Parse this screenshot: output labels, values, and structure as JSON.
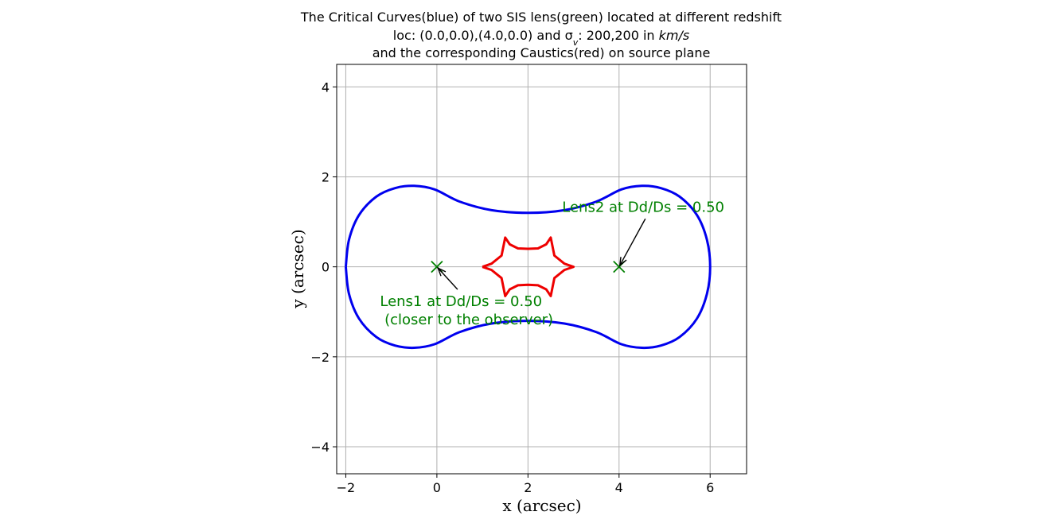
{
  "chart_data": {
    "type": "line",
    "title_lines": [
      "The Critical Curves(blue) of two SIS lens(green) located at different redshift",
      "loc: (0.0,0.0),(4.0,0.0) and σ",
      "and the corresponding Caustics(red) on source plane"
    ],
    "title_sigma_sub": "v",
    "title_sigma_rest": ": 200,200 in ",
    "title_units": "km/s",
    "xlabel": "x (arcsec)",
    "ylabel": "y (arcsec)",
    "xlim": [
      -2.2,
      6.8
    ],
    "ylim": [
      -4.6,
      4.5
    ],
    "xticks": [
      -2,
      0,
      2,
      4,
      6
    ],
    "yticks": [
      -4,
      -2,
      0,
      2,
      4
    ],
    "xtick_labels": [
      "−2",
      "0",
      "2",
      "4",
      "6"
    ],
    "ytick_labels": [
      "−4",
      "−2",
      "0",
      "2",
      "4"
    ],
    "grid": true,
    "colors": {
      "critical": "#0000ee",
      "caustic": "#ee0000",
      "lens": "#008000",
      "grid": "#b0b0b0"
    },
    "lenses": [
      {
        "x": 0.0,
        "y": 0.0
      },
      {
        "x": 4.0,
        "y": 0.0
      }
    ],
    "annotations": [
      {
        "text_lines": [
          "Lens1 at Dd/Ds = 0.50",
          " (closer to the observer)"
        ],
        "xy": [
          0.0,
          0.0
        ],
        "text_xy": [
          -1.25,
          -0.75
        ]
      },
      {
        "text_lines": [
          "Lens2 at Dd/Ds = 0.50"
        ],
        "xy": [
          4.0,
          0.0
        ],
        "text_xy": [
          2.75,
          1.35
        ]
      }
    ],
    "critical_curve": {
      "name": "Critical Curves",
      "x": [
        -2.0,
        -1.93,
        -1.71,
        -1.33,
        -0.92,
        -0.5,
        -0.05,
        0.5,
        1.2,
        2.0,
        2.8,
        3.5,
        4.05,
        4.5,
        4.92,
        5.33,
        5.71,
        5.93,
        6.0,
        5.93,
        5.71,
        5.33,
        4.92,
        4.5,
        4.05,
        3.5,
        2.8,
        2.0,
        1.2,
        0.5,
        -0.05,
        -0.5,
        -0.92,
        -1.33,
        -1.71,
        -1.93,
        -2.0
      ],
      "y": [
        0.0,
        0.6,
        1.15,
        1.56,
        1.75,
        1.8,
        1.72,
        1.45,
        1.26,
        1.2,
        1.26,
        1.45,
        1.72,
        1.8,
        1.75,
        1.56,
        1.15,
        0.6,
        0.0,
        -0.6,
        -1.15,
        -1.56,
        -1.75,
        -1.8,
        -1.72,
        -1.45,
        -1.26,
        -1.2,
        -1.26,
        -1.45,
        -1.72,
        -1.8,
        -1.75,
        -1.56,
        -1.15,
        -0.6,
        0.0
      ]
    },
    "caustic_curve": {
      "name": "Caustics",
      "x": [
        1.0,
        1.2,
        1.42,
        1.5,
        1.6,
        1.78,
        2.0,
        2.22,
        2.4,
        2.5,
        2.58,
        2.8,
        3.0,
        2.8,
        2.58,
        2.5,
        2.4,
        2.22,
        2.0,
        1.78,
        1.6,
        1.5,
        1.42,
        1.2,
        1.0
      ],
      "y": [
        0.0,
        0.07,
        0.25,
        0.65,
        0.5,
        0.41,
        0.4,
        0.41,
        0.5,
        0.65,
        0.25,
        0.07,
        0.0,
        -0.07,
        -0.25,
        -0.65,
        -0.5,
        -0.41,
        -0.4,
        -0.41,
        -0.5,
        -0.65,
        -0.25,
        -0.07,
        0.0
      ]
    }
  }
}
